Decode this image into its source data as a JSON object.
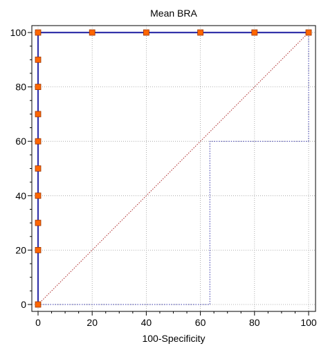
{
  "chart_data": {
    "type": "line",
    "title": "Mean BRA",
    "xlabel": "100-Specificity",
    "ylabel": "",
    "xlim": [
      0,
      100
    ],
    "ylim": [
      0,
      100
    ],
    "xticks": [
      0,
      20,
      40,
      60,
      80,
      100
    ],
    "yticks": [
      0,
      20,
      40,
      60,
      80,
      100
    ],
    "grid": true,
    "series": [
      {
        "style": "solid",
        "color": "#3333aa",
        "marker_color": "#ff6600",
        "x": [
          0,
          0,
          0,
          0,
          0,
          0,
          0,
          0,
          0,
          0,
          0,
          20,
          40,
          60,
          80,
          100
        ],
        "y": [
          0,
          20,
          30,
          40,
          50,
          60,
          70,
          80,
          90,
          100,
          100,
          100,
          100,
          100,
          100,
          100
        ]
      },
      {
        "style": "dotted",
        "color": "#3333aa",
        "x": [
          0,
          63.5,
          63.5,
          100,
          100
        ],
        "y": [
          0,
          0,
          60,
          60,
          100
        ]
      },
      {
        "style": "dotted",
        "color": "#aa2222",
        "x": [
          0,
          100
        ],
        "y": [
          0,
          100
        ]
      }
    ]
  }
}
